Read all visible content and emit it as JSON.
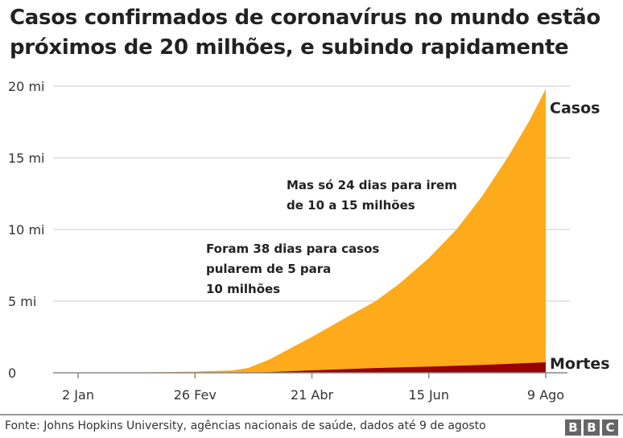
{
  "chart_data": {
    "type": "area",
    "title": "Casos confirmados de coronavírus no mundo estão próximos de 20 milhões, e subindo rapidamente",
    "ylim": [
      0,
      20
    ],
    "yticks": [
      {
        "v": 0,
        "label": "0"
      },
      {
        "v": 5,
        "label": "5 mi"
      },
      {
        "v": 10,
        "label": "10 mi"
      },
      {
        "v": 15,
        "label": "15 mi"
      },
      {
        "v": 20,
        "label": "20 mi"
      }
    ],
    "xlim": [
      0,
      220
    ],
    "xticks": [
      {
        "v": 0,
        "label": "2 Jan"
      },
      {
        "v": 55,
        "label": "26 Fev"
      },
      {
        "v": 110,
        "label": "21 Abr"
      },
      {
        "v": 165,
        "label": "15 Jun"
      },
      {
        "v": 220,
        "label": "9 Ago"
      }
    ],
    "x_unit": "days since 2 Jan",
    "series": [
      {
        "name": "Casos",
        "color": "#fdaa1b",
        "x": [
          0,
          20,
          55,
          73,
          80,
          90,
          110,
          129,
          140,
          151,
          165,
          178,
          190,
          202,
          212,
          220
        ],
        "values": [
          0,
          0.01,
          0.08,
          0.17,
          0.34,
          0.93,
          2.5,
          4.1,
          5.0,
          6.2,
          8.0,
          10.0,
          12.3,
          15.0,
          17.5,
          19.8
        ]
      },
      {
        "name": "Mortes",
        "color": "#990000",
        "x": [
          0,
          55,
          73,
          80,
          90,
          110,
          140,
          165,
          190,
          220
        ],
        "values": [
          0,
          0.003,
          0.007,
          0.015,
          0.05,
          0.17,
          0.33,
          0.43,
          0.55,
          0.73
        ]
      }
    ],
    "annotations": [
      {
        "lines": [
          "Mas só 24 dias para irem",
          "de 10 a 15 milhões"
        ]
      },
      {
        "lines": [
          "Foram 38 dias para casos",
          "pularem de 5 para",
          "10 milhões"
        ]
      }
    ]
  },
  "footer": {
    "source": "Fonte: Johns Hopkins University, agências nacionais de saúde, dados até 9 de agosto",
    "logo": [
      "B",
      "B",
      "C"
    ]
  }
}
